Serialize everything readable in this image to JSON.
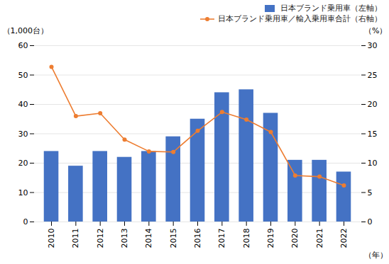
{
  "chart_data": {
    "type": "bar",
    "categories": [
      "2010",
      "2011",
      "2012",
      "2013",
      "2014",
      "2015",
      "2016",
      "2017",
      "2018",
      "2019",
      "2020",
      "2021",
      "2022"
    ],
    "xlabel": "（年）",
    "ylabel": "（1,000台）",
    "y2label": "（%）",
    "series": [
      {
        "name": "日本ブランド乗用車（左軸）",
        "type": "bar",
        "color": "#4472C4",
        "values": [
          24,
          19,
          24,
          22,
          24,
          29,
          35,
          44,
          45,
          37,
          21,
          21,
          17
        ]
      },
      {
        "name": "日本ブランド乗用車／輸入乗用車合計（右軸）",
        "type": "line",
        "axis": "y2",
        "color": "#ED7D31",
        "marker": "circle",
        "values": [
          26.4,
          18.0,
          18.5,
          14.0,
          12.0,
          11.9,
          15.5,
          18.7,
          17.4,
          15.3,
          7.9,
          7.7,
          6.2
        ]
      }
    ],
    "ylim": [
      0,
      60
    ],
    "yticks": [
      0,
      10,
      20,
      30,
      40,
      50,
      60
    ],
    "y2lim": [
      0,
      30
    ],
    "y2ticks": [
      0,
      5,
      10,
      15,
      20,
      25,
      30
    ],
    "grid": true,
    "legend": "upper right"
  }
}
